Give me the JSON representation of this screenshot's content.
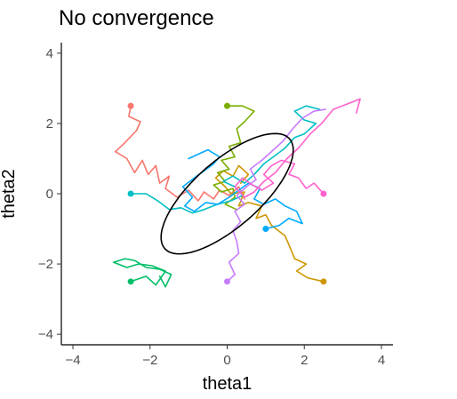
{
  "chart_data": {
    "type": "line",
    "title": "No convergence",
    "xlabel": "theta1",
    "ylabel": "theta2",
    "xlim": [
      -4.3,
      4.3
    ],
    "ylim": [
      -4.3,
      4.3
    ],
    "xticks": [
      -4,
      -2,
      0,
      2,
      4
    ],
    "yticks": [
      -4,
      -2,
      0,
      2,
      4
    ],
    "xtick_labels": [
      "−4",
      "−2",
      "0",
      "2",
      "4"
    ],
    "ytick_labels": [
      "−4",
      "−2",
      "0",
      "2",
      "4"
    ],
    "grid": false,
    "ellipse": {
      "center": [
        0,
        0
      ],
      "rx": 2.25,
      "ry": 0.9,
      "angle_deg": 45,
      "color": "#000000"
    },
    "series": [
      {
        "color": "#F8766D",
        "start": [
          -2.5,
          2.5
        ],
        "points": [
          [
            -2.5,
            2.5
          ],
          [
            -2.55,
            2.2
          ],
          [
            -2.25,
            2.05
          ],
          [
            -2.35,
            1.8
          ],
          [
            -2.7,
            1.4
          ],
          [
            -2.9,
            1.2
          ],
          [
            -2.6,
            1.0
          ],
          [
            -2.4,
            0.6
          ],
          [
            -2.2,
            0.95
          ],
          [
            -2.05,
            0.55
          ],
          [
            -1.85,
            0.8
          ],
          [
            -1.75,
            0.3
          ],
          [
            -1.5,
            0.5
          ],
          [
            -1.6,
            0.15
          ],
          [
            -1.3,
            -0.1
          ],
          [
            -1.0,
            0.1
          ],
          [
            -0.75,
            -0.2
          ],
          [
            -0.6,
            0.05
          ],
          [
            -0.35,
            -0.15
          ],
          [
            -0.2,
            0.1
          ],
          [
            0.05,
            -0.05
          ],
          [
            0.3,
            0.2
          ],
          [
            0.45,
            -0.15
          ]
        ]
      },
      {
        "color": "#CD9600",
        "start": [
          2.5,
          -2.5
        ],
        "points": [
          [
            2.5,
            -2.5
          ],
          [
            2.1,
            -2.4
          ],
          [
            1.8,
            -2.2
          ],
          [
            2.05,
            -2.0
          ],
          [
            1.75,
            -1.85
          ],
          [
            1.6,
            -1.45
          ],
          [
            1.5,
            -1.2
          ],
          [
            1.15,
            -0.9
          ],
          [
            1.0,
            -0.6
          ],
          [
            0.75,
            -0.7
          ],
          [
            0.9,
            -0.35
          ],
          [
            0.55,
            -0.25
          ],
          [
            0.3,
            -0.35
          ],
          [
            0.45,
            0.05
          ],
          [
            0.1,
            0.0
          ],
          [
            -0.05,
            0.2
          ],
          [
            -0.3,
            0.45
          ],
          [
            -0.1,
            0.65
          ],
          [
            0.15,
            0.5
          ],
          [
            0.3,
            0.8
          ],
          [
            0.55,
            0.55
          ],
          [
            0.35,
            0.3
          ]
        ]
      },
      {
        "color": "#7CAE00",
        "start": [
          0,
          2.5
        ],
        "points": [
          [
            0,
            2.5
          ],
          [
            0.4,
            2.5
          ],
          [
            0.7,
            2.35
          ],
          [
            0.45,
            2.05
          ],
          [
            0.25,
            1.85
          ],
          [
            0.35,
            1.45
          ],
          [
            0.05,
            1.35
          ],
          [
            0.2,
            1.05
          ],
          [
            -0.15,
            0.95
          ],
          [
            0.05,
            0.7
          ],
          [
            -0.25,
            0.6
          ],
          [
            -0.05,
            0.35
          ],
          [
            -0.35,
            0.25
          ],
          [
            -0.15,
            0.05
          ],
          [
            0.15,
            0.15
          ],
          [
            0.2,
            -0.1
          ],
          [
            -0.05,
            -0.3
          ],
          [
            0.25,
            -0.45
          ]
        ]
      },
      {
        "color": "#00BE67",
        "start": [
          -2.5,
          -2.5
        ],
        "points": [
          [
            -2.5,
            -2.5
          ],
          [
            -2.1,
            -2.35
          ],
          [
            -1.85,
            -2.6
          ],
          [
            -1.6,
            -2.2
          ],
          [
            -1.95,
            -2.05
          ],
          [
            -2.3,
            -2.0
          ],
          [
            -2.6,
            -2.1
          ],
          [
            -2.95,
            -1.95
          ],
          [
            -2.65,
            -1.85
          ],
          [
            -2.4,
            -1.9
          ],
          [
            -2.1,
            -2.1
          ],
          [
            -1.75,
            -2.15
          ],
          [
            -1.45,
            -2.3
          ],
          [
            -1.6,
            -2.65
          ],
          [
            -1.75,
            -2.35
          ]
        ]
      },
      {
        "color": "#00BFC4",
        "start": [
          -2.5,
          0
        ],
        "points": [
          [
            -2.5,
            0
          ],
          [
            -2.1,
            0
          ],
          [
            -1.8,
            -0.2
          ],
          [
            -1.5,
            -0.45
          ],
          [
            -1.2,
            -0.4
          ],
          [
            -0.9,
            -0.55
          ],
          [
            -0.6,
            -0.45
          ],
          [
            -0.25,
            -0.3
          ],
          [
            0.1,
            -0.2
          ],
          [
            0.4,
            -0.05
          ],
          [
            0.2,
            0.2
          ],
          [
            -0.1,
            0.35
          ],
          [
            0.15,
            0.5
          ],
          [
            0.45,
            0.3
          ],
          [
            0.7,
            0.55
          ],
          [
            0.95,
            0.85
          ],
          [
            1.2,
            1.05
          ],
          [
            1.5,
            1.3
          ],
          [
            1.75,
            1.6
          ],
          [
            2.0,
            1.7
          ],
          [
            2.3,
            2.0
          ],
          [
            2.0,
            2.1
          ],
          [
            1.75,
            2.35
          ],
          [
            2.05,
            2.5
          ],
          [
            2.4,
            2.4
          ]
        ]
      },
      {
        "color": "#00A9FF",
        "start": [
          1,
          -1
        ],
        "points": [
          [
            1,
            -1
          ],
          [
            1.35,
            -0.9
          ],
          [
            1.6,
            -0.7
          ],
          [
            1.95,
            -0.85
          ],
          [
            1.8,
            -0.5
          ],
          [
            1.5,
            -0.35
          ],
          [
            1.25,
            -0.15
          ],
          [
            0.95,
            -0.3
          ],
          [
            0.7,
            -0.15
          ],
          [
            0.85,
            0.15
          ],
          [
            0.55,
            0.3
          ],
          [
            0.3,
            0.1
          ],
          [
            0.05,
            -0.1
          ],
          [
            -0.25,
            -0.3
          ],
          [
            -0.55,
            -0.25
          ],
          [
            -0.85,
            -0.5
          ],
          [
            -1.1,
            -0.35
          ],
          [
            -0.9,
            -0.1
          ],
          [
            -1.15,
            0.2
          ],
          [
            -0.85,
            0.45
          ],
          [
            -0.6,
            0.65
          ],
          [
            -0.35,
            0.85
          ],
          [
            -0.2,
            1.05
          ],
          [
            -0.5,
            1.25
          ],
          [
            -0.8,
            1.1
          ],
          [
            -1.0,
            1.0
          ]
        ]
      },
      {
        "color": "#C77CFF",
        "start": [
          0,
          -2.5
        ],
        "points": [
          [
            0,
            -2.5
          ],
          [
            0.2,
            -2.3
          ],
          [
            0.05,
            -1.95
          ],
          [
            0.3,
            -1.7
          ],
          [
            0.25,
            -1.35
          ],
          [
            0.15,
            -1.05
          ],
          [
            0.35,
            -0.8
          ],
          [
            0.2,
            -0.5
          ],
          [
            0.45,
            -0.3
          ],
          [
            0.25,
            -0.05
          ],
          [
            0.5,
            0.2
          ],
          [
            0.75,
            0.4
          ],
          [
            0.6,
            0.7
          ],
          [
            0.9,
            0.95
          ],
          [
            1.15,
            1.2
          ],
          [
            1.45,
            1.5
          ],
          [
            1.7,
            1.85
          ],
          [
            1.95,
            2.15
          ],
          [
            2.25,
            2.35
          ],
          [
            2.55,
            2.4
          ]
        ]
      },
      {
        "color": "#FF61CC",
        "start": [
          2.5,
          0
        ],
        "points": [
          [
            2.5,
            0
          ],
          [
            2.25,
            0.3
          ],
          [
            2.05,
            0.15
          ],
          [
            1.85,
            0.45
          ],
          [
            1.6,
            0.55
          ],
          [
            1.75,
            0.85
          ],
          [
            1.4,
            0.95
          ],
          [
            1.15,
            0.8
          ],
          [
            0.95,
            0.55
          ],
          [
            1.2,
            0.3
          ],
          [
            0.9,
            0.1
          ],
          [
            0.65,
            0.25
          ],
          [
            0.4,
            0.45
          ],
          [
            0.2,
            0.2
          ],
          [
            0.45,
            -0.1
          ],
          [
            0.7,
            0.05
          ],
          [
            0.95,
            0.35
          ],
          [
            1.25,
            0.6
          ],
          [
            1.55,
            1.0
          ],
          [
            1.85,
            1.3
          ],
          [
            2.15,
            1.7
          ],
          [
            2.45,
            2.0
          ],
          [
            2.75,
            2.4
          ],
          [
            3.1,
            2.55
          ],
          [
            3.45,
            2.7
          ],
          [
            3.35,
            2.3
          ]
        ]
      }
    ]
  }
}
